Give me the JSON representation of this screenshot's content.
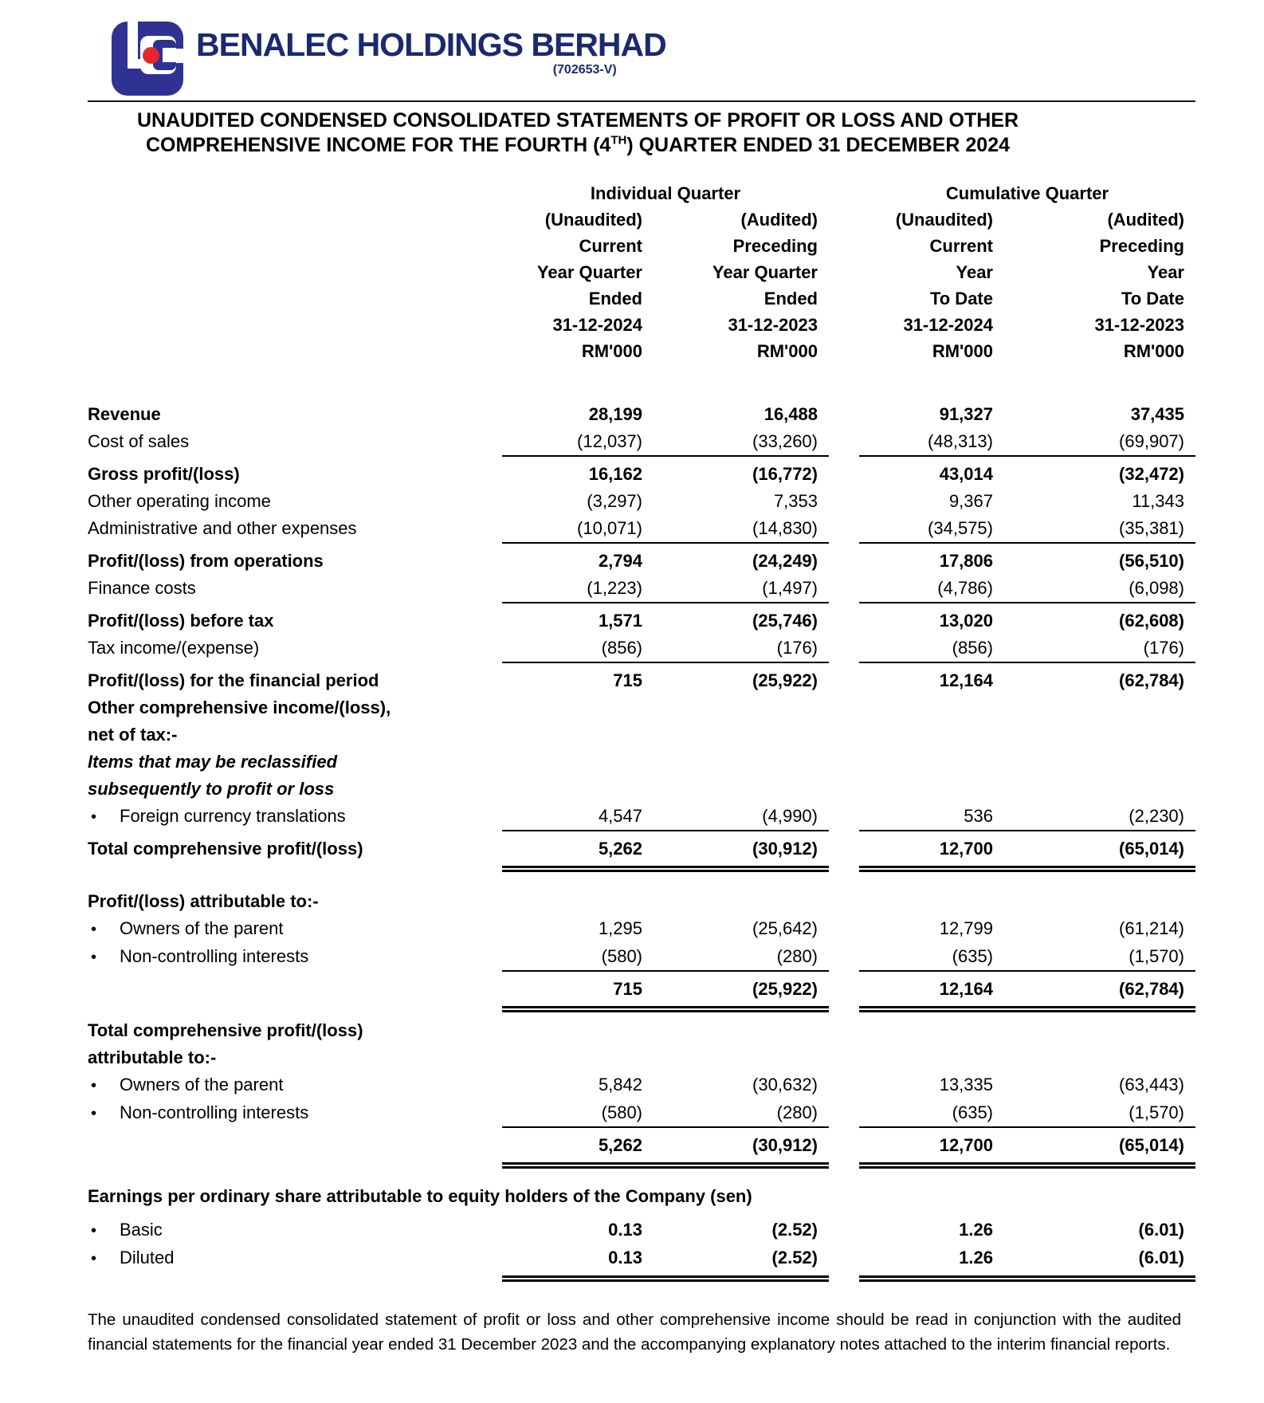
{
  "header": {
    "company_name": "BENALEC HOLDINGS BERHAD",
    "company_reg": "(702653-V)",
    "colors": {
      "logo_blue": "#2f3293",
      "logo_red": "#e8262b",
      "brand_navy": "#1b2a6e"
    }
  },
  "title": {
    "line1": "UNAUDITED CONDENSED CONSOLIDATED STATEMENTS OF PROFIT OR LOSS AND OTHER",
    "line2_pre": "COMPREHENSIVE INCOME FOR THE FOURTH (4",
    "line2_sup": "TH",
    "line2_post": ") QUARTER ENDED 31 DECEMBER 2024"
  },
  "table": {
    "group_headers": [
      "Individual Quarter",
      "Cumulative Quarter"
    ],
    "column_headers": [
      [
        "(Unaudited)",
        "(Audited)",
        "(Unaudited)",
        "(Audited)"
      ],
      [
        "Current",
        "Preceding",
        "Current",
        "Preceding"
      ],
      [
        "Year Quarter",
        "Year Quarter",
        "Year",
        "Year"
      ],
      [
        "Ended",
        "Ended",
        "To Date",
        "To Date"
      ],
      [
        "31-12-2024",
        "31-12-2023",
        "31-12-2024",
        "31-12-2023"
      ],
      [
        "RM'000",
        "RM'000",
        "RM'000",
        "RM'000"
      ]
    ],
    "rows": [
      {
        "label": "Revenue",
        "bold": true,
        "values": [
          "28,199",
          "16,488",
          "91,327",
          "37,435"
        ],
        "vbold": true
      },
      {
        "label": "Cost of sales",
        "values": [
          "(12,037)",
          "(33,260)",
          "(48,313)",
          "(69,907)"
        ],
        "rule": "single"
      },
      {
        "label": "Gross profit/(loss)",
        "bold": true,
        "values": [
          "16,162",
          "(16,772)",
          "43,014",
          "(32,472)"
        ],
        "vbold": true
      },
      {
        "label": "Other operating income",
        "values": [
          "(3,297)",
          "7,353",
          "9,367",
          "11,343"
        ]
      },
      {
        "label": "Administrative and other expenses",
        "values": [
          "(10,071)",
          "(14,830)",
          "(34,575)",
          "(35,381)"
        ],
        "rule": "single"
      },
      {
        "label": "Profit/(loss) from operations",
        "bold": true,
        "values": [
          "2,794",
          "(24,249)",
          "17,806",
          "(56,510)"
        ],
        "vbold": true
      },
      {
        "label": "Finance costs",
        "values": [
          "(1,223)",
          "(1,497)",
          "(4,786)",
          "(6,098)"
        ],
        "rule": "single"
      },
      {
        "label": "Profit/(loss) before tax",
        "bold": true,
        "values": [
          "1,571",
          "(25,746)",
          "13,020",
          "(62,608)"
        ],
        "vbold": true
      },
      {
        "label": "Tax income/(expense)",
        "values": [
          "(856)",
          "(176)",
          "(856)",
          "(176)"
        ],
        "rule": "single"
      },
      {
        "label": "Profit/(loss) for the financial period",
        "bold": true,
        "values": [
          "715",
          "(25,922)",
          "12,164",
          "(62,784)"
        ],
        "vbold": true
      },
      {
        "label": "Other comprehensive income/(loss),",
        "bold": true
      },
      {
        "label": "net of tax:-",
        "bold": true
      },
      {
        "label": "Items that may be reclassified",
        "bold": true,
        "italic": true
      },
      {
        "label": "subsequently to profit or loss",
        "bold": true,
        "italic": true
      },
      {
        "label": "Foreign currency translations",
        "bullet": true,
        "values": [
          "4,547",
          "(4,990)",
          "536",
          "(2,230)"
        ],
        "rule": "single"
      },
      {
        "label": "Total comprehensive profit/(loss)",
        "bold": true,
        "values": [
          "5,262",
          "(30,912)",
          "12,700",
          "(65,014)"
        ],
        "vbold": true,
        "rule": "double"
      },
      {
        "gap": 28
      },
      {
        "label": "Profit/(loss) attributable to:-",
        "bold": true
      },
      {
        "label": "Owners of the parent",
        "bullet": true,
        "values": [
          "1,295",
          "(25,642)",
          "12,799",
          "(61,214)"
        ]
      },
      {
        "label": "Non-controlling interests",
        "bullet": true,
        "values": [
          "(580)",
          "(280)",
          "(635)",
          "(1,570)"
        ],
        "rule": "single"
      },
      {
        "label": "",
        "values": [
          "715",
          "(25,922)",
          "12,164",
          "(62,784)"
        ],
        "vbold": true,
        "rule": "double"
      },
      {
        "gap": 14
      },
      {
        "label": "Total comprehensive profit/(loss)",
        "bold": true
      },
      {
        "label": "attributable to:-",
        "bold": true
      },
      {
        "label": "Owners of the parent",
        "bullet": true,
        "values": [
          "5,842",
          "(30,632)",
          "13,335",
          "(63,443)"
        ]
      },
      {
        "label": "Non-controlling interests",
        "bullet": true,
        "values": [
          "(580)",
          "(280)",
          "(635)",
          "(1,570)"
        ],
        "rule": "single"
      },
      {
        "label": "",
        "values": [
          "5,262",
          "(30,912)",
          "12,700",
          "(65,014)"
        ],
        "vbold": true,
        "rule": "double"
      },
      {
        "gap": 26
      },
      {
        "label": "Earnings per ordinary share attributable to equity holders of the Company (sen)",
        "bold": true,
        "wide": true
      },
      {
        "gap": 8
      },
      {
        "label": "Basic",
        "bullet": true,
        "values": [
          "0.13",
          "(2.52)",
          "1.26",
          "(6.01)"
        ],
        "vbold": true
      },
      {
        "label": "Diluted",
        "bullet": true,
        "values": [
          "0.13",
          "(2.52)",
          "1.26",
          "(6.01)"
        ],
        "vbold": true,
        "rule": "double"
      }
    ]
  },
  "footer": {
    "text": "The unaudited condensed consolidated statement of profit or loss and other comprehensive income should be read in conjunction with the audited financial statements for the financial year ended 31 December 2023 and the accompanying explanatory notes attached to the interim financial reports."
  }
}
